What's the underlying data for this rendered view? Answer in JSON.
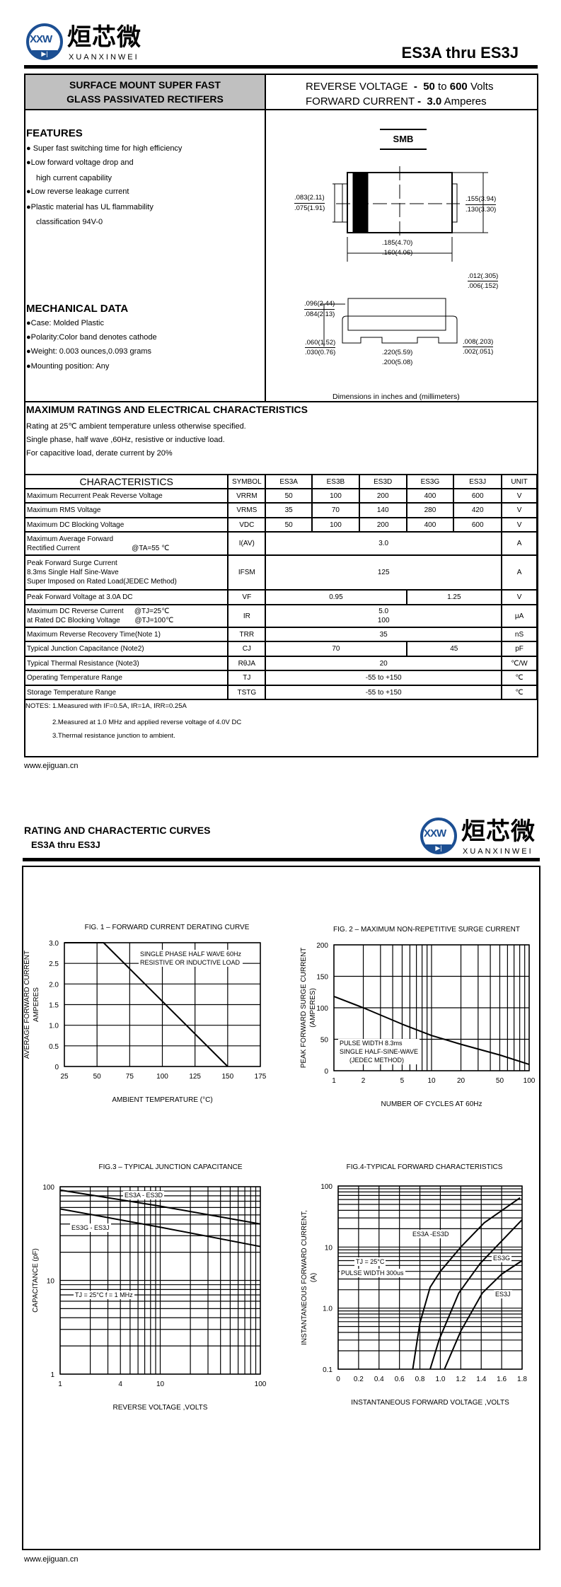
{
  "brand": {
    "name_cn": "烜芯微",
    "name_en": "XUANXINWEI",
    "mark": "XXW",
    "blue": "#1c4f93"
  },
  "page1": {
    "part_title": "ES3A thru ES3J",
    "product_desc": [
      "SURFACE MOUNT SUPER FAST",
      "GLASS PASSIVATED RECTIFERS"
    ],
    "ratings": {
      "rv_label": "REVERSE VOLTAGE",
      "rv_min": "50",
      "rv_to": "to",
      "rv_max": "600",
      "rv_unit": "Volts",
      "fc_label": "FORWARD CURRENT",
      "fc_value": "3.0",
      "fc_unit": "Amperes",
      "dash": "-"
    },
    "features": {
      "heading": "FEATURES",
      "items": [
        "Super fast switching time for high efficiency",
        "Low forward voltage drop and",
        "high current capability",
        "Low reverse leakage current",
        "Plastic material has UL flammability",
        "classification 94V-0"
      ]
    },
    "mechanical": {
      "heading": "MECHANICAL DATA",
      "items": [
        "Case:  Molded Plastic",
        "Polarity:Color band denotes cathode",
        "Weight: 0.003 ounces,0.093 grams",
        "Mounting position: Any"
      ]
    },
    "package": {
      "name": "SMB",
      "dims": {
        "h1a": ".083(2.11)",
        "h1b": ".075(1.91)",
        "w1a": ".155(3.94)",
        "w1b": ".130(3.30)",
        "l1a": ".185(4.70)",
        "l1b": ".160(4.06)",
        "t1a": ".012(.305)",
        "t1b": ".006(.152)",
        "h2a": ".096(2.44)",
        "h2b": ".084(2.13)",
        "p1a": ".060(1.52)",
        "p1b": ".030(0.76)",
        "l2a": ".220(5.59)",
        "l2b": ".200(5.08)",
        "s1a": ".008(.203)",
        "s1b": ".002(.051)"
      },
      "caption": "Dimensions in inches and (millimeters)"
    },
    "max_ratings": {
      "heading": "MAXIMUM RATINGS AND ELECTRICAL CHARACTERISTICS",
      "lines": [
        "Rating at 25℃ ambient temperature unless otherwise specified.",
        "Single phase, half wave ,60Hz, resistive or inductive load.",
        "For capacitive load, derate current by 20%"
      ]
    },
    "table": {
      "headers": [
        "CHARACTERISTICS",
        "SYMBOL",
        "ES3A",
        "ES3B",
        "ES3D",
        "ES3G",
        "ES3J",
        "UNIT"
      ],
      "rows": [
        {
          "c": "Maximum Recurrent Peak Reverse Voltage",
          "s": "VRRM",
          "v": [
            "50",
            "100",
            "200",
            "400",
            "600"
          ],
          "u": "V"
        },
        {
          "c": "Maximum RMS Voltage",
          "s": "VRMS",
          "v": [
            "35",
            "70",
            "140",
            "280",
            "420"
          ],
          "u": "V"
        },
        {
          "c": "Maximum DC Blocking Voltage",
          "s": "VDC",
          "v": [
            "50",
            "100",
            "200",
            "400",
            "600"
          ],
          "u": "V"
        },
        {
          "c": "Maximum Average Forward",
          "c2": "Rectified Current",
          "cond": "@TA=55 ℃",
          "s": "I(AV)",
          "v": [
            "3.0"
          ],
          "u": "A"
        },
        {
          "c": "Peak Forward Surge Current",
          "c2": "8.3ms Single Half Sine-Wave",
          "c3": "Super Imposed on Rated Load(JEDEC Method)",
          "s": "IFSM",
          "v": [
            "125"
          ],
          "u": "A"
        },
        {
          "c": "Peak Forward Voltage at 3.0A DC",
          "s": "VF",
          "v": [
            "0.95",
            "1.25"
          ],
          "u": "V"
        },
        {
          "c": "Maximum DC Reverse Current",
          "cond": "@TJ=25℃",
          "c2": "at Rated DC Blocking Voltage",
          "cond2": "@TJ=100℃",
          "s": "IR",
          "v": [
            "5.0",
            "100"
          ],
          "u": "μA"
        },
        {
          "c": "Maximum Reverse Recovery Time(Note 1)",
          "s": "TRR",
          "v": [
            "35"
          ],
          "u": "nS"
        },
        {
          "c": "Typical Junction  Capacitance (Note2)",
          "s": "CJ",
          "v": [
            "70",
            "45"
          ],
          "u": "pF"
        },
        {
          "c": "Typical Thermal Resistance (Note3)",
          "s": "RθJA",
          "v": [
            "20"
          ],
          "u": "℃/W"
        },
        {
          "c": "Operating Temperature Range",
          "s": "TJ",
          "v": [
            "-55 to +150"
          ],
          "u": "℃"
        },
        {
          "c": "Storage Temperature Range",
          "s": "TSTG",
          "v": [
            "-55 to +150"
          ],
          "u": "℃"
        }
      ]
    },
    "notes": [
      "NOTES: 1.Measured with IF=0.5A, IR=1A, IRR=0.25A",
      "2.Measured at 1.0 MHz and applied reverse voltage of 4.0V DC",
      "3.Thermal resistance junction to ambient."
    ],
    "footer_url": "www.ejiguan.cn"
  },
  "page2": {
    "title": "RATING AND CHARACTERTIC CURVES",
    "subtitle": "ES3A  thru  ES3J",
    "footer_url": "www.ejiguan.cn"
  },
  "chart_data": [
    {
      "type": "line",
      "title": "FIG. 1 – FORWARD CURRENT DERATING CURVE",
      "xlabel": "AMBIENT TEMPERATURE  (°C)",
      "ylabel": [
        "AVERAGE  FORWARD CURRENT",
        "AMPERES"
      ],
      "xlim": [
        25,
        175
      ],
      "ylim": [
        0,
        3.0
      ],
      "xscale": "linear",
      "yscale": "linear",
      "grid": true,
      "xticks": [
        "25",
        "50",
        "75",
        "100",
        "125",
        "150",
        "175"
      ],
      "yticks": [
        "0",
        "0.5",
        "1.0",
        "1.5",
        "2.0",
        "2.5",
        "3.0"
      ],
      "series": [
        {
          "points": [
            [
              25,
              3.0
            ],
            [
              55,
              3.0
            ],
            [
              150,
              0
            ]
          ]
        }
      ],
      "annotation": [
        "SINGLE PHASE HALF WAVE 60Hz",
        "RESISTIVE OR INDUCTIVE LOAD"
      ]
    },
    {
      "type": "line",
      "title": "FIG. 2 – MAXIMUM NON-REPETITIVE SURGE CURRENT",
      "xlabel": "NUMBER OF CYCLES AT 60Hz",
      "ylabel": [
        "PEAK FORWARD SURGE CURRENT",
        "(AMPERES)"
      ],
      "xlim": [
        1,
        100
      ],
      "ylim": [
        0,
        200
      ],
      "xscale": "log",
      "yscale": "linear",
      "grid": true,
      "xticks": [
        "1",
        "2",
        "5",
        "10",
        "20",
        "50",
        "100"
      ],
      "yticks": [
        "0",
        "50",
        "100",
        "150",
        "200"
      ],
      "series": [
        {
          "points": [
            [
              1,
              118
            ],
            [
              2,
              100
            ],
            [
              5,
              74
            ],
            [
              10,
              56
            ],
            [
              20,
              42
            ],
            [
              50,
              25
            ],
            [
              100,
              10
            ]
          ]
        }
      ],
      "annotation": [
        "PULSE WIDTH 8.3ms",
        "SINGLE HALF-SINE-WAVE",
        "(JEDEC METHOD)"
      ]
    },
    {
      "type": "line",
      "title": "FIG.3 – TYPICAL JUNCTION CAPACITANCE",
      "xlabel": "REVERSE VOLTAGE ,VOLTS",
      "ylabel": [
        "CAPACITANCE (pF)"
      ],
      "xlim": [
        1,
        100
      ],
      "ylim": [
        1,
        100
      ],
      "xscale": "log",
      "yscale": "log",
      "grid": true,
      "xticks": [
        "1",
        "4",
        "10",
        "100"
      ],
      "yticks": [
        "1",
        "10",
        "100"
      ],
      "series": [
        {
          "name": "ES3A  - ES3D",
          "points": [
            [
              1,
              92
            ],
            [
              10,
              62
            ],
            [
              100,
              40
            ]
          ]
        },
        {
          "name": "ES3G   - ES3J",
          "points": [
            [
              1,
              58
            ],
            [
              10,
              37
            ],
            [
              100,
              23
            ]
          ]
        }
      ],
      "annotation": [
        "TJ = 25°C f = 1 MHz"
      ]
    },
    {
      "type": "line",
      "title": "FIG.4-TYPICAL FORWARD CHARACTERISTICS",
      "xlabel": "INSTANTANEOUS FORWARD VOLTAGE ,VOLTS",
      "ylabel": [
        "INSTANTANEOUS FORWARD CURRENT,",
        "(A)"
      ],
      "xlim": [
        0,
        1.8
      ],
      "ylim": [
        0.1,
        100
      ],
      "xscale": "linear",
      "yscale": "log",
      "grid": true,
      "xticks": [
        "0",
        "0.2",
        "0.4",
        "0.6",
        "0.8",
        "1.0",
        "1.2",
        "1.4",
        "1.6",
        "1.8"
      ],
      "yticks": [
        "0.1",
        "1.0",
        "10",
        "100"
      ],
      "series": [
        {
          "name": "ES3A  -ES3D",
          "points": [
            [
              0.73,
              0.1
            ],
            [
              0.8,
              0.57
            ],
            [
              0.9,
              2.2
            ],
            [
              1.0,
              4.0
            ],
            [
              1.2,
              10
            ],
            [
              1.43,
              25
            ],
            [
              1.78,
              64
            ]
          ]
        },
        {
          "name": "ES3G",
          "points": [
            [
              0.9,
              0.1
            ],
            [
              0.99,
              0.31
            ],
            [
              1.18,
              1.76
            ],
            [
              1.39,
              5.4
            ],
            [
              1.8,
              28
            ]
          ]
        },
        {
          "name": "ES3J",
          "points": [
            [
              1.04,
              0.1
            ],
            [
              1.2,
              0.42
            ],
            [
              1.41,
              1.76
            ],
            [
              1.6,
              3.6
            ],
            [
              1.8,
              6
            ]
          ]
        }
      ],
      "annotation": [
        "TJ = 25°C",
        "PULSE WIDTH 300us"
      ]
    }
  ]
}
